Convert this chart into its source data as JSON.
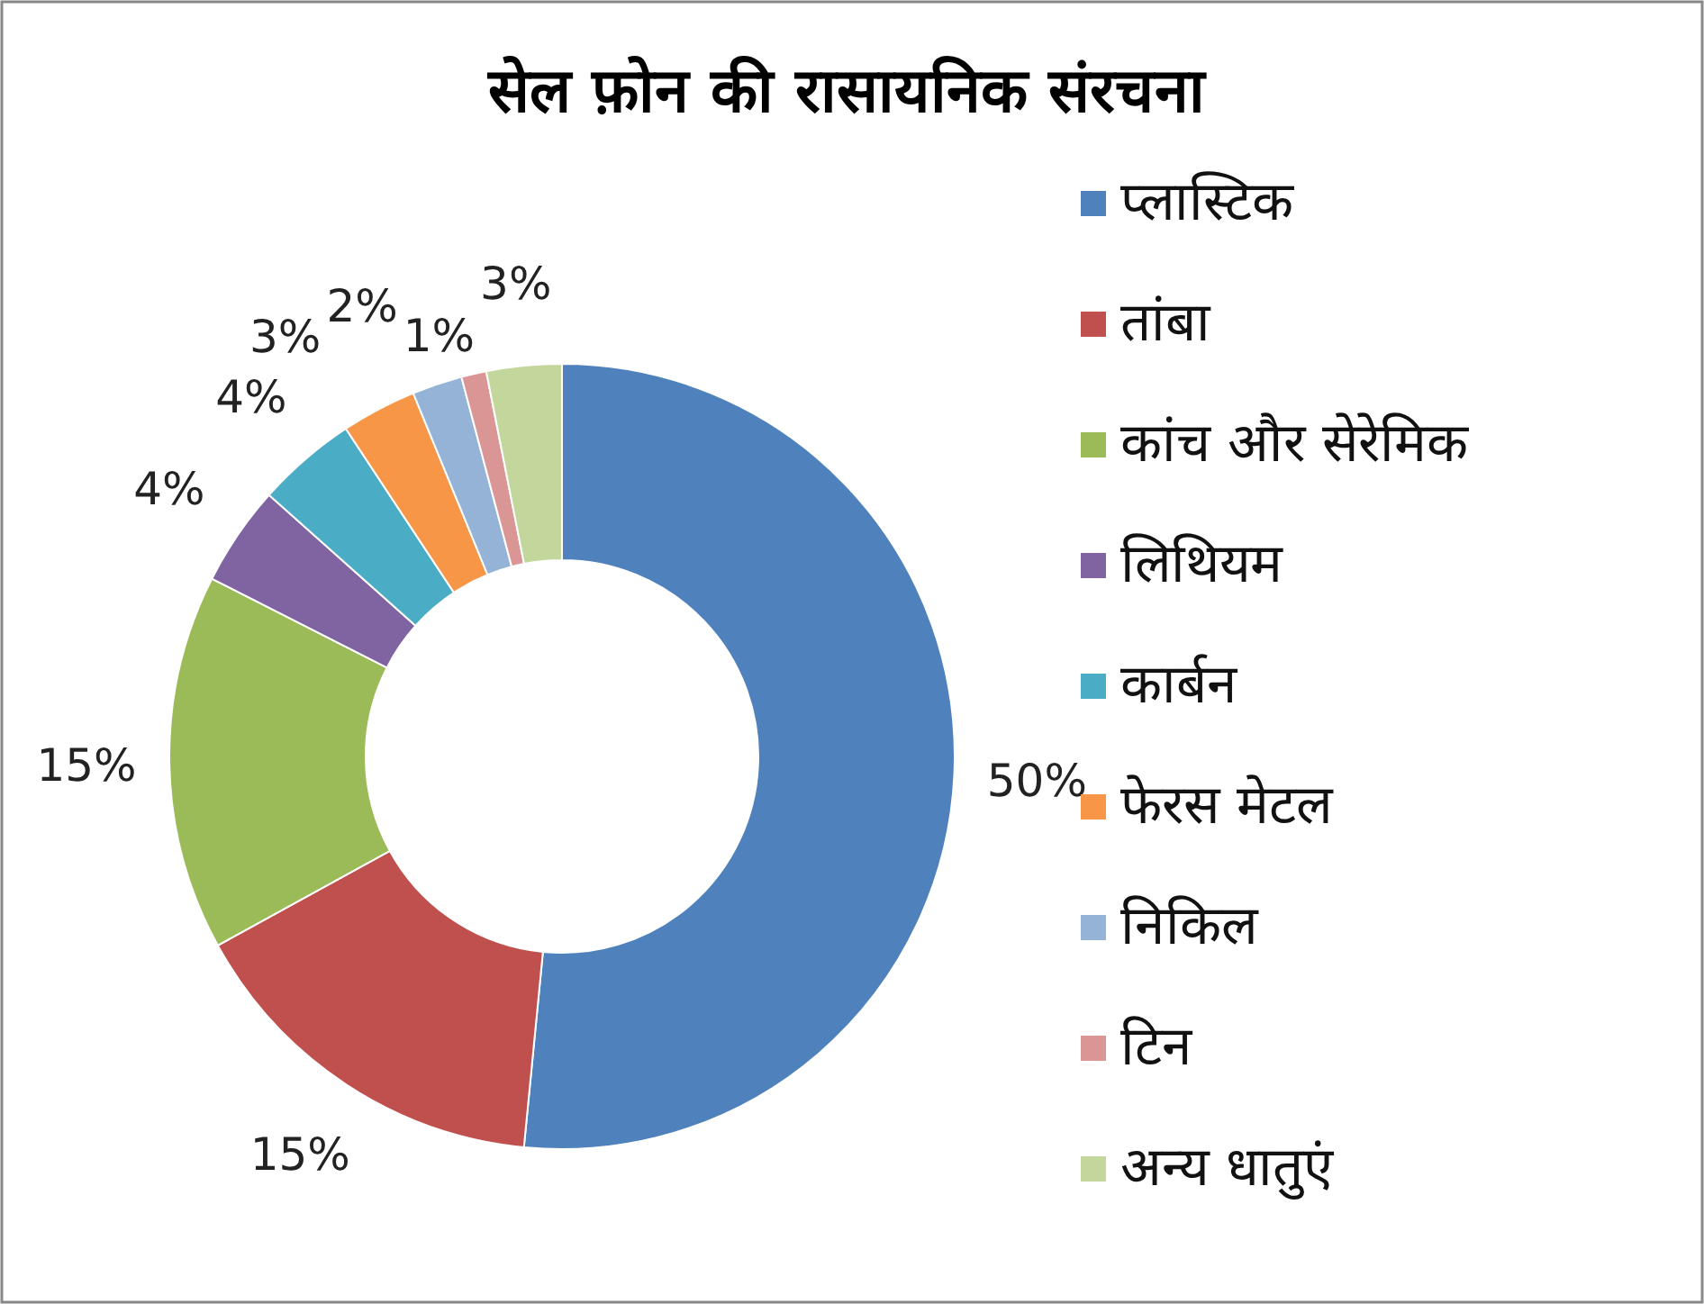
{
  "chart_data": {
    "type": "donut",
    "title": "सेल फ़ोन की रासायनिक संरचना",
    "categories": [
      "प्लास्टिक",
      "तांबा",
      "कांच और सेरेमिक",
      "लिथियम",
      "कार्बन",
      "फेरस मेटल",
      "निकिल",
      "टिन",
      "अन्य धातुएं"
    ],
    "values": [
      50,
      15,
      15,
      4,
      4,
      3,
      2,
      1,
      3
    ],
    "colors": [
      "#4f81bd",
      "#c0504d",
      "#9bbb59",
      "#8064a2",
      "#4bacc6",
      "#f79646",
      "#95b3d7",
      "#d99694",
      "#c3d69b"
    ],
    "value_labels": [
      "50%",
      "15%",
      "15%",
      "4%",
      "4%",
      "3%",
      "2%",
      "1%",
      "3%"
    ],
    "legend": "right"
  }
}
